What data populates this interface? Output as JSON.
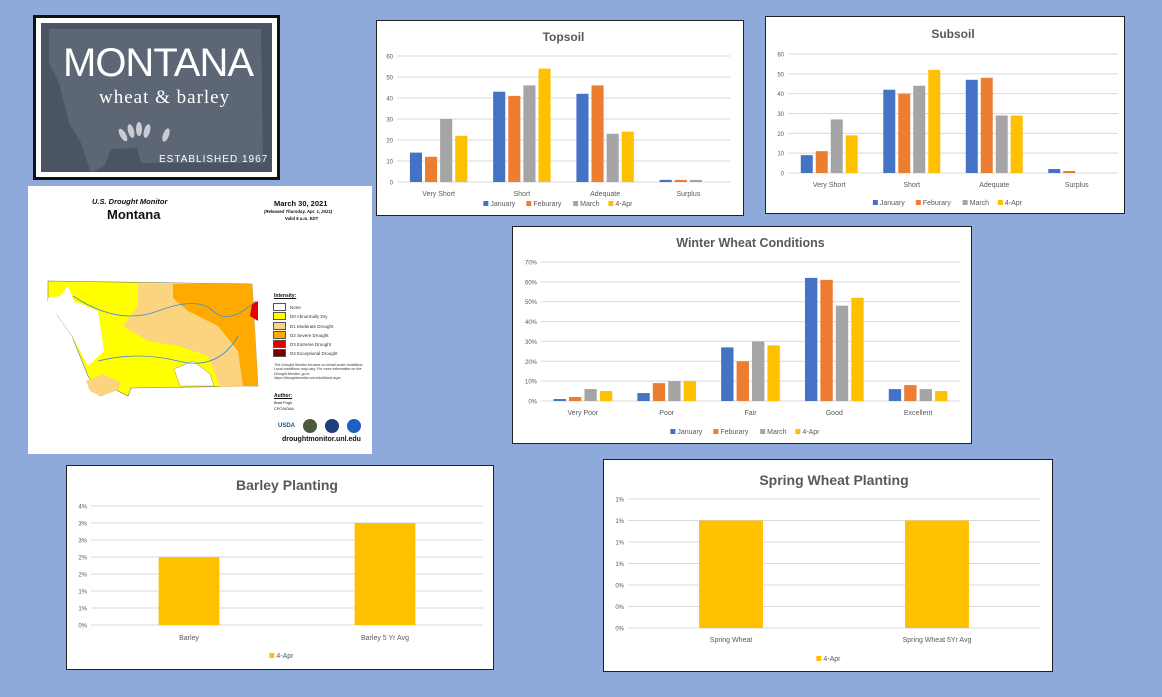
{
  "logo": {
    "name": "MONTANA",
    "sub": "wheat & barley",
    "established": "ESTABLISHED 1967"
  },
  "drought_monitor": {
    "title": "U.S. Drought Monitor",
    "state": "Montana",
    "date": "March 30, 2021",
    "released": "(Released Thursday, Apr. 1, 2021)",
    "valid": "Valid 8 a.m. EDT",
    "intensity_label": "Intensity:",
    "legend": [
      {
        "label": "None",
        "color": "#ffffff"
      },
      {
        "label": "D0 Abnormally Dry",
        "color": "#ffff00"
      },
      {
        "label": "D1 Moderate Drought",
        "color": "#fcd37f"
      },
      {
        "label": "D2 Severe Drought",
        "color": "#ffaa00"
      },
      {
        "label": "D3 Extreme Drought",
        "color": "#e60000"
      },
      {
        "label": "D4 Exceptional Drought",
        "color": "#730000"
      }
    ],
    "note": "The Drought Monitor focuses on broad-scale conditions. Local conditions may vary. For more information on the Drought Monitor, go to https://droughtmonitor.unl.edu/About.aspx",
    "author_label": "Author:",
    "author": "Brad Pugh",
    "author_org": "CPC/NOAA",
    "url": "droughtmonitor.unl.edu"
  },
  "colors": {
    "January": "#4472c4",
    "Feburary": "#ed7d31",
    "March": "#a5a5a5",
    "4-Apr": "#ffc000"
  },
  "chart_data": [
    {
      "type": "bar",
      "title": "Topsoil",
      "categories": [
        "Very Short",
        "Short",
        "Adequate",
        "Surplus"
      ],
      "series": [
        {
          "name": "January",
          "values": [
            14,
            43,
            42,
            1
          ]
        },
        {
          "name": "Feburary",
          "values": [
            12,
            41,
            46,
            1
          ]
        },
        {
          "name": "March",
          "values": [
            30,
            46,
            23,
            1
          ]
        },
        {
          "name": "4-Apr",
          "values": [
            22,
            54,
            24,
            0
          ]
        }
      ],
      "ylim": [
        0,
        60
      ],
      "yticks": [
        "0",
        "10",
        "20",
        "30",
        "40",
        "50",
        "60"
      ],
      "grid": true,
      "legend": "bottom"
    },
    {
      "type": "bar",
      "title": "Subsoil",
      "categories": [
        "Very Short",
        "Short",
        "Adequate",
        "Surplus"
      ],
      "series": [
        {
          "name": "January",
          "values": [
            9,
            42,
            47,
            2
          ]
        },
        {
          "name": "Feburary",
          "values": [
            11,
            40,
            48,
            1
          ]
        },
        {
          "name": "March",
          "values": [
            27,
            44,
            29,
            0
          ]
        },
        {
          "name": "4-Apr",
          "values": [
            19,
            52,
            29,
            0
          ]
        }
      ],
      "ylim": [
        0,
        60
      ],
      "yticks": [
        "0",
        "10",
        "20",
        "30",
        "40",
        "50",
        "60"
      ],
      "grid": true,
      "legend": "bottom"
    },
    {
      "type": "bar",
      "title": "Winter Wheat Conditions",
      "categories": [
        "Very Poor",
        "Poor",
        "Fair",
        "Good",
        "Excellent"
      ],
      "series": [
        {
          "name": "January",
          "values": [
            1,
            4,
            27,
            62,
            6
          ]
        },
        {
          "name": "Feburary",
          "values": [
            2,
            9,
            20,
            61,
            8
          ]
        },
        {
          "name": "March",
          "values": [
            6,
            10,
            30,
            48,
            6
          ]
        },
        {
          "name": "4-Apr",
          "values": [
            5,
            10,
            28,
            52,
            5
          ]
        }
      ],
      "ylim": [
        0,
        70
      ],
      "yticks": [
        "0%",
        "10%",
        "20%",
        "30%",
        "40%",
        "50%",
        "60%",
        "70%"
      ],
      "grid": true,
      "legend": "bottom"
    },
    {
      "type": "bar",
      "title": "Barley Planting",
      "categories": [
        "Barley",
        "Barley 5 Yr Avg"
      ],
      "series": [
        {
          "name": "4-Apr",
          "values": [
            2,
            3
          ]
        }
      ],
      "ylim": [
        0,
        3.5
      ],
      "yticks": [
        "0%",
        "1%",
        "1%",
        "2%",
        "2%",
        "3%",
        "3%",
        "4%"
      ],
      "grid": true,
      "legend": "bottom"
    },
    {
      "type": "bar",
      "title": "Spring Wheat Planting",
      "categories": [
        "Spring Wheat",
        "Spring Wheat 5Yr Avg"
      ],
      "series": [
        {
          "name": "4-Apr",
          "values": [
            1,
            1
          ]
        }
      ],
      "ylim": [
        0,
        1.2
      ],
      "yticks": [
        "0%",
        "0%",
        "0%",
        "1%",
        "1%",
        "1%",
        "1%"
      ],
      "grid": true,
      "legend": "bottom"
    }
  ]
}
